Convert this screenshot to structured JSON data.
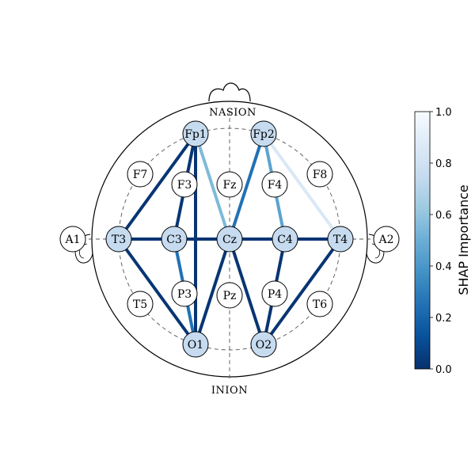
{
  "landmarks": {
    "nasion": "NASION",
    "inion": "INION"
  },
  "electrodes": [
    {
      "id": "Fp1",
      "label": "Fp1",
      "highlighted": true
    },
    {
      "id": "Fp2",
      "label": "Fp2",
      "highlighted": true
    },
    {
      "id": "F7",
      "label": "F7",
      "highlighted": false
    },
    {
      "id": "F3",
      "label": "F3",
      "highlighted": false
    },
    {
      "id": "Fz",
      "label": "Fz",
      "highlighted": false
    },
    {
      "id": "F4",
      "label": "F4",
      "highlighted": false
    },
    {
      "id": "F8",
      "label": "F8",
      "highlighted": false
    },
    {
      "id": "A1",
      "label": "A1",
      "highlighted": false
    },
    {
      "id": "T3",
      "label": "T3",
      "highlighted": true
    },
    {
      "id": "C3",
      "label": "C3",
      "highlighted": true
    },
    {
      "id": "Cz",
      "label": "Cz",
      "highlighted": true
    },
    {
      "id": "C4",
      "label": "C4",
      "highlighted": true
    },
    {
      "id": "T4",
      "label": "T4",
      "highlighted": true
    },
    {
      "id": "A2",
      "label": "A2",
      "highlighted": false
    },
    {
      "id": "T5",
      "label": "T5",
      "highlighted": false
    },
    {
      "id": "P3",
      "label": "P3",
      "highlighted": false
    },
    {
      "id": "Pz",
      "label": "Pz",
      "highlighted": false
    },
    {
      "id": "P4",
      "label": "P4",
      "highlighted": false
    },
    {
      "id": "T6",
      "label": "T6",
      "highlighted": false
    },
    {
      "id": "O1",
      "label": "O1",
      "highlighted": true
    },
    {
      "id": "O2",
      "label": "O2",
      "highlighted": true
    }
  ],
  "connections": [
    {
      "from": "T3",
      "to": "Fp1",
      "importance": 0.02
    },
    {
      "from": "Fp1",
      "to": "C3",
      "importance": 0.02
    },
    {
      "from": "Fp1",
      "to": "Cz",
      "importance": 0.55
    },
    {
      "from": "Fp1",
      "to": "O1",
      "importance": 0.02
    },
    {
      "from": "T3",
      "to": "C3",
      "importance": 0.02
    },
    {
      "from": "C3",
      "to": "Cz",
      "importance": 0.02
    },
    {
      "from": "T3",
      "to": "O1",
      "importance": 0.02
    },
    {
      "from": "C3",
      "to": "O1",
      "importance": 0.25
    },
    {
      "from": "Cz",
      "to": "O1",
      "importance": 0.02
    },
    {
      "from": "Fp2",
      "to": "Cz",
      "importance": 0.25
    },
    {
      "from": "Fp2",
      "to": "C4",
      "importance": 0.45
    },
    {
      "from": "Fp2",
      "to": "T4",
      "importance": 0.85
    },
    {
      "from": "Cz",
      "to": "C4",
      "importance": 0.02
    },
    {
      "from": "C4",
      "to": "T4",
      "importance": 0.02
    },
    {
      "from": "Cz",
      "to": "O2",
      "importance": 0.02
    },
    {
      "from": "C4",
      "to": "O2",
      "importance": 0.02
    },
    {
      "from": "T4",
      "to": "O2",
      "importance": 0.02
    }
  ],
  "colorbar": {
    "label": "SHAP Importance",
    "ticks": [
      "0.0",
      "0.2",
      "0.4",
      "0.6",
      "0.8",
      "1.0"
    ],
    "min": 0,
    "max": 1,
    "colormap": "Blues_r"
  },
  "colors": {
    "electrode_highlight": "#c6dbef",
    "electrode_default": "#ffffff",
    "outline": "#000000"
  }
}
